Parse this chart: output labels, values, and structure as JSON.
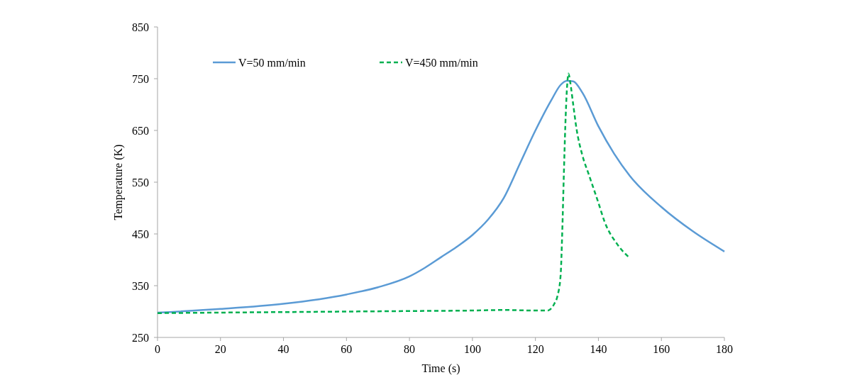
{
  "chart_data": {
    "type": "line",
    "xlabel": "Time (s)",
    "ylabel": "Temperature (K)",
    "xlim": [
      0,
      180
    ],
    "xticks": [
      0,
      20,
      40,
      60,
      80,
      100,
      120,
      140,
      160,
      180
    ],
    "ylim": [
      250,
      850
    ],
    "yticks": [
      250,
      350,
      450,
      550,
      650,
      750,
      850
    ],
    "grid": false,
    "legend": "top",
    "marker": "none",
    "series": [
      {
        "name": "V=50 mm/min",
        "color": "#5b9bd5",
        "line_style": "solid",
        "x": [
          0,
          20,
          40,
          60,
          70,
          80,
          85,
          90,
          95,
          100,
          105,
          110,
          115,
          120,
          125,
          128,
          130,
          132,
          135,
          140,
          145,
          150,
          160,
          170,
          180
        ],
        "values": [
          298,
          305,
          315,
          333,
          347,
          368,
          385,
          405,
          425,
          448,
          478,
          520,
          585,
          650,
          708,
          738,
          746,
          745,
          722,
          658,
          605,
          562,
          502,
          455,
          416
        ]
      },
      {
        "name": "V=450 mm/min",
        "color": "#00b050",
        "line_style": "dashed",
        "x": [
          0,
          20,
          40,
          60,
          80,
          100,
          110,
          120,
          124,
          125,
          126,
          127,
          128,
          128.5,
          129,
          129.5,
          130,
          130.5,
          131,
          132,
          133,
          135,
          137,
          140,
          142,
          146,
          150
        ],
        "values": [
          297,
          298,
          299,
          300,
          301,
          302,
          303,
          302,
          302,
          306,
          315,
          330,
          370,
          450,
          560,
          660,
          730,
          760,
          745,
          700,
          655,
          600,
          564,
          510,
          473,
          430,
          403
        ]
      }
    ]
  }
}
